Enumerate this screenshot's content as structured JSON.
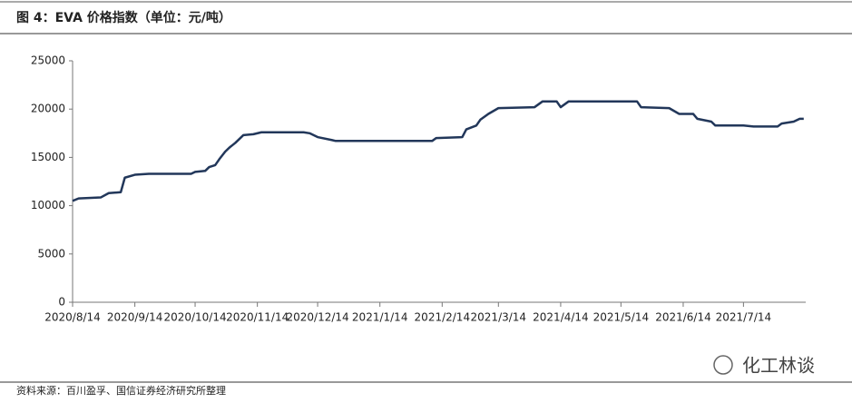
{
  "chart_data": {
    "type": "line",
    "title": "图 4：EVA 价格指数（单位：元/吨）",
    "source": "资料来源：百川盈孚、国信证券经济研究所整理",
    "watermark": "化工林谈",
    "x": [
      "2020/8/14",
      "2020/8/17",
      "2020/8/28",
      "2020/9/1",
      "2020/9/7",
      "2020/9/9",
      "2020/9/14",
      "2020/9/21",
      "2020/10/12",
      "2020/10/14",
      "2020/10/19",
      "2020/10/21",
      "2020/10/24",
      "2020/10/26",
      "2020/10/29",
      "2020/10/31",
      "2020/11/3",
      "2020/11/7",
      "2020/11/12",
      "2020/11/16",
      "2020/12/7",
      "2020/12/10",
      "2020/12/14",
      "2020/12/21",
      "2020/12/23",
      "2021/2/9",
      "2021/2/11",
      "2021/2/24",
      "2021/2/26",
      "2021/3/3",
      "2021/3/5",
      "2021/3/9",
      "2021/3/14",
      "2021/4/1",
      "2021/4/5",
      "2021/4/12",
      "2021/4/14",
      "2021/4/18",
      "2021/5/22",
      "2021/5/24",
      "2021/6/7",
      "2021/6/12",
      "2021/6/19",
      "2021/6/21",
      "2021/6/28",
      "2021/6/30",
      "2021/7/14",
      "2021/7/19",
      "2021/7/31",
      "2021/8/2",
      "2021/8/8",
      "2021/8/11",
      "2021/8/13"
    ],
    "series": [
      {
        "name": "EVA价格指数",
        "color": "#22375a",
        "values": [
          10500,
          10750,
          10850,
          11300,
          11400,
          12900,
          13200,
          13300,
          13300,
          13500,
          13600,
          14000,
          14200,
          14800,
          15600,
          16000,
          16500,
          17300,
          17400,
          17600,
          17600,
          17500,
          17100,
          16800,
          16700,
          16700,
          17000,
          17100,
          17900,
          18300,
          18900,
          19500,
          20100,
          20200,
          20800,
          20800,
          20200,
          20800,
          20800,
          20200,
          20100,
          19500,
          19500,
          19000,
          18700,
          18300,
          18300,
          18200,
          18200,
          18500,
          18700,
          19000,
          19000
        ]
      }
    ],
    "xlim": [
      "2020/8/14",
      "2021/8/14"
    ],
    "xticks": [
      "2020/8/14",
      "2020/9/14",
      "2020/10/14",
      "2020/11/14",
      "2020/12/14",
      "2021/1/14",
      "2021/2/14",
      "2021/3/14",
      "2021/4/14",
      "2021/5/14",
      "2021/6/14",
      "2021/7/14"
    ],
    "ylim": [
      0,
      25000
    ],
    "yticks": [
      0,
      5000,
      10000,
      15000,
      20000,
      25000
    ],
    "grid": false
  }
}
